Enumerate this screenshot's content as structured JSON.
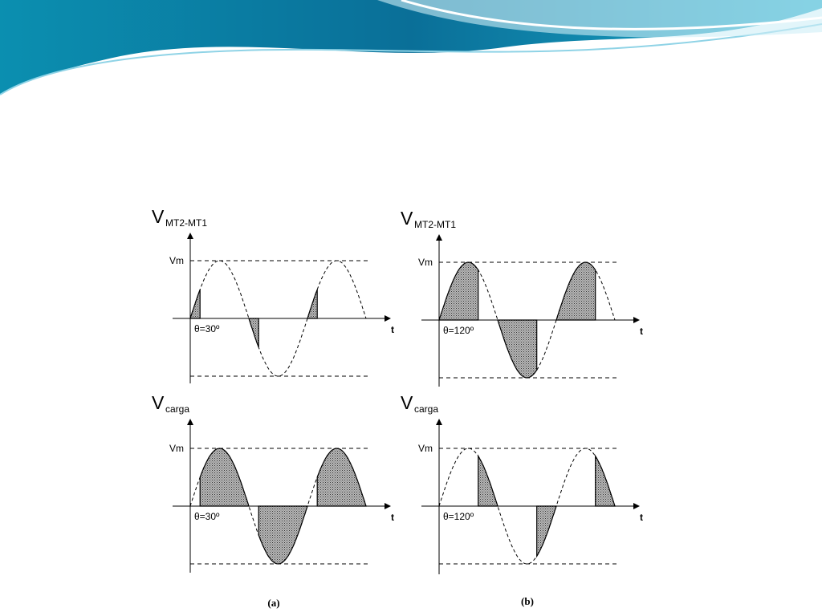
{
  "panels": [
    {
      "y_label": {
        "main": "V",
        "sub": "MT2-MT1"
      },
      "vm": "Vm",
      "theta": "θ=30º",
      "t": "t"
    },
    {
      "y_label": {
        "main": "V",
        "sub": "MT2-MT1"
      },
      "vm": "Vm",
      "theta": "θ=120º",
      "t": "t"
    },
    {
      "y_label": {
        "main": "V",
        "sub": "carga"
      },
      "vm": "Vm",
      "theta": "θ=30º",
      "t": "t"
    },
    {
      "y_label": {
        "main": "V",
        "sub": "carga"
      },
      "vm": "Vm",
      "theta": "θ=120º",
      "t": "t"
    }
  ],
  "captions": [
    "(a)",
    "(b)"
  ]
}
